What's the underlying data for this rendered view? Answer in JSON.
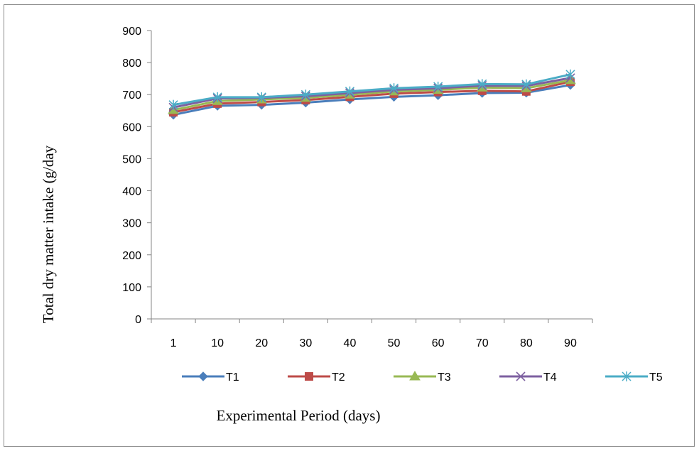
{
  "chart_data": {
    "type": "line",
    "categories": [
      "1",
      "10",
      "20",
      "30",
      "40",
      "50",
      "60",
      "70",
      "80",
      "90"
    ],
    "series": [
      {
        "name": "T1",
        "color": "#4a7ebb",
        "marker": "diamond",
        "values": [
          637,
          665,
          668,
          675,
          685,
          693,
          698,
          705,
          706,
          730
        ]
      },
      {
        "name": "T2",
        "color": "#be4b48",
        "marker": "square",
        "values": [
          645,
          672,
          677,
          683,
          693,
          703,
          708,
          712,
          710,
          740
        ]
      },
      {
        "name": "T3",
        "color": "#98b954",
        "marker": "triangle",
        "values": [
          652,
          680,
          685,
          690,
          700,
          710,
          715,
          722,
          720,
          745
        ]
      },
      {
        "name": "T4",
        "color": "#7d60a0",
        "marker": "x",
        "values": [
          660,
          688,
          690,
          695,
          705,
          715,
          720,
          728,
          727,
          752
        ]
      },
      {
        "name": "T5",
        "color": "#4bacc6",
        "marker": "star",
        "values": [
          668,
          692,
          692,
          700,
          710,
          720,
          725,
          733,
          732,
          763
        ]
      }
    ],
    "xlabel": "Experimental Period (days)",
    "ylabel": "Total dry matter intake (g/day",
    "ylim": [
      0,
      900
    ],
    "yticks": [
      0,
      100,
      200,
      300,
      400,
      500,
      600,
      700,
      800,
      900
    ],
    "grid": false,
    "legend": "bottom"
  }
}
